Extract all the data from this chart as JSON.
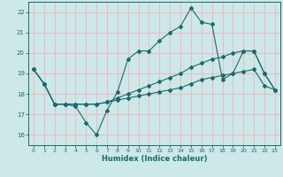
{
  "xlabel": "Humidex (Indice chaleur)",
  "xlim": [
    -0.5,
    23.5
  ],
  "ylim": [
    15.5,
    22.5
  ],
  "yticks": [
    16,
    17,
    18,
    19,
    20,
    21,
    22
  ],
  "xticks": [
    0,
    1,
    2,
    3,
    4,
    5,
    6,
    7,
    8,
    9,
    10,
    11,
    12,
    13,
    14,
    15,
    16,
    17,
    18,
    19,
    20,
    21,
    22,
    23
  ],
  "bg_color": "#cce8e8",
  "grid_color": "#f0b8c0",
  "line_color": "#1a6b6b",
  "series": [
    [
      19.2,
      18.5,
      17.5,
      17.5,
      17.4,
      16.6,
      16.0,
      17.2,
      18.1,
      19.7,
      20.1,
      20.1,
      20.6,
      21.0,
      21.3,
      22.2,
      21.5,
      21.4,
      18.7,
      19.0,
      20.1,
      20.1,
      19.0,
      18.2
    ],
    [
      19.2,
      18.5,
      17.5,
      17.5,
      17.5,
      17.5,
      17.5,
      17.6,
      17.8,
      18.0,
      18.2,
      18.4,
      18.6,
      18.8,
      19.0,
      19.3,
      19.5,
      19.7,
      19.8,
      20.0,
      20.1,
      20.1,
      19.0,
      18.2
    ],
    [
      19.2,
      18.5,
      17.5,
      17.5,
      17.5,
      17.5,
      17.5,
      17.6,
      17.7,
      17.8,
      17.9,
      18.0,
      18.1,
      18.2,
      18.3,
      18.5,
      18.7,
      18.8,
      18.9,
      19.0,
      19.1,
      19.2,
      18.4,
      18.2
    ]
  ]
}
